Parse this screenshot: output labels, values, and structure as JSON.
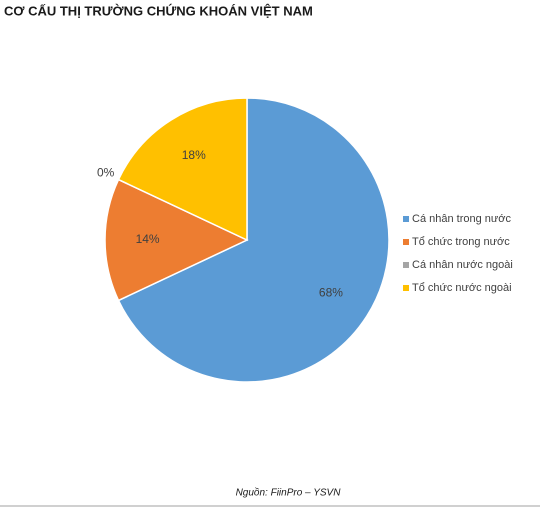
{
  "chart_data": {
    "type": "pie",
    "title": "CƠ CẤU THỊ TRƯỜNG CHỨNG KHOÁN VIỆT NAM",
    "categories": [
      "Cá nhân trong nước",
      "Tổ chức trong nước",
      "Cá nhân nước ngoài",
      "Tổ chức nước ngoài"
    ],
    "values": [
      68,
      14,
      0,
      18
    ],
    "value_labels": [
      "68%",
      "14%",
      "0%",
      "18%"
    ],
    "colors": [
      "#5b9bd5",
      "#ed7d31",
      "#a5a5a5",
      "#ffc000"
    ],
    "legend": "right",
    "source": "Nguồn: FiinPro – YSVN"
  }
}
